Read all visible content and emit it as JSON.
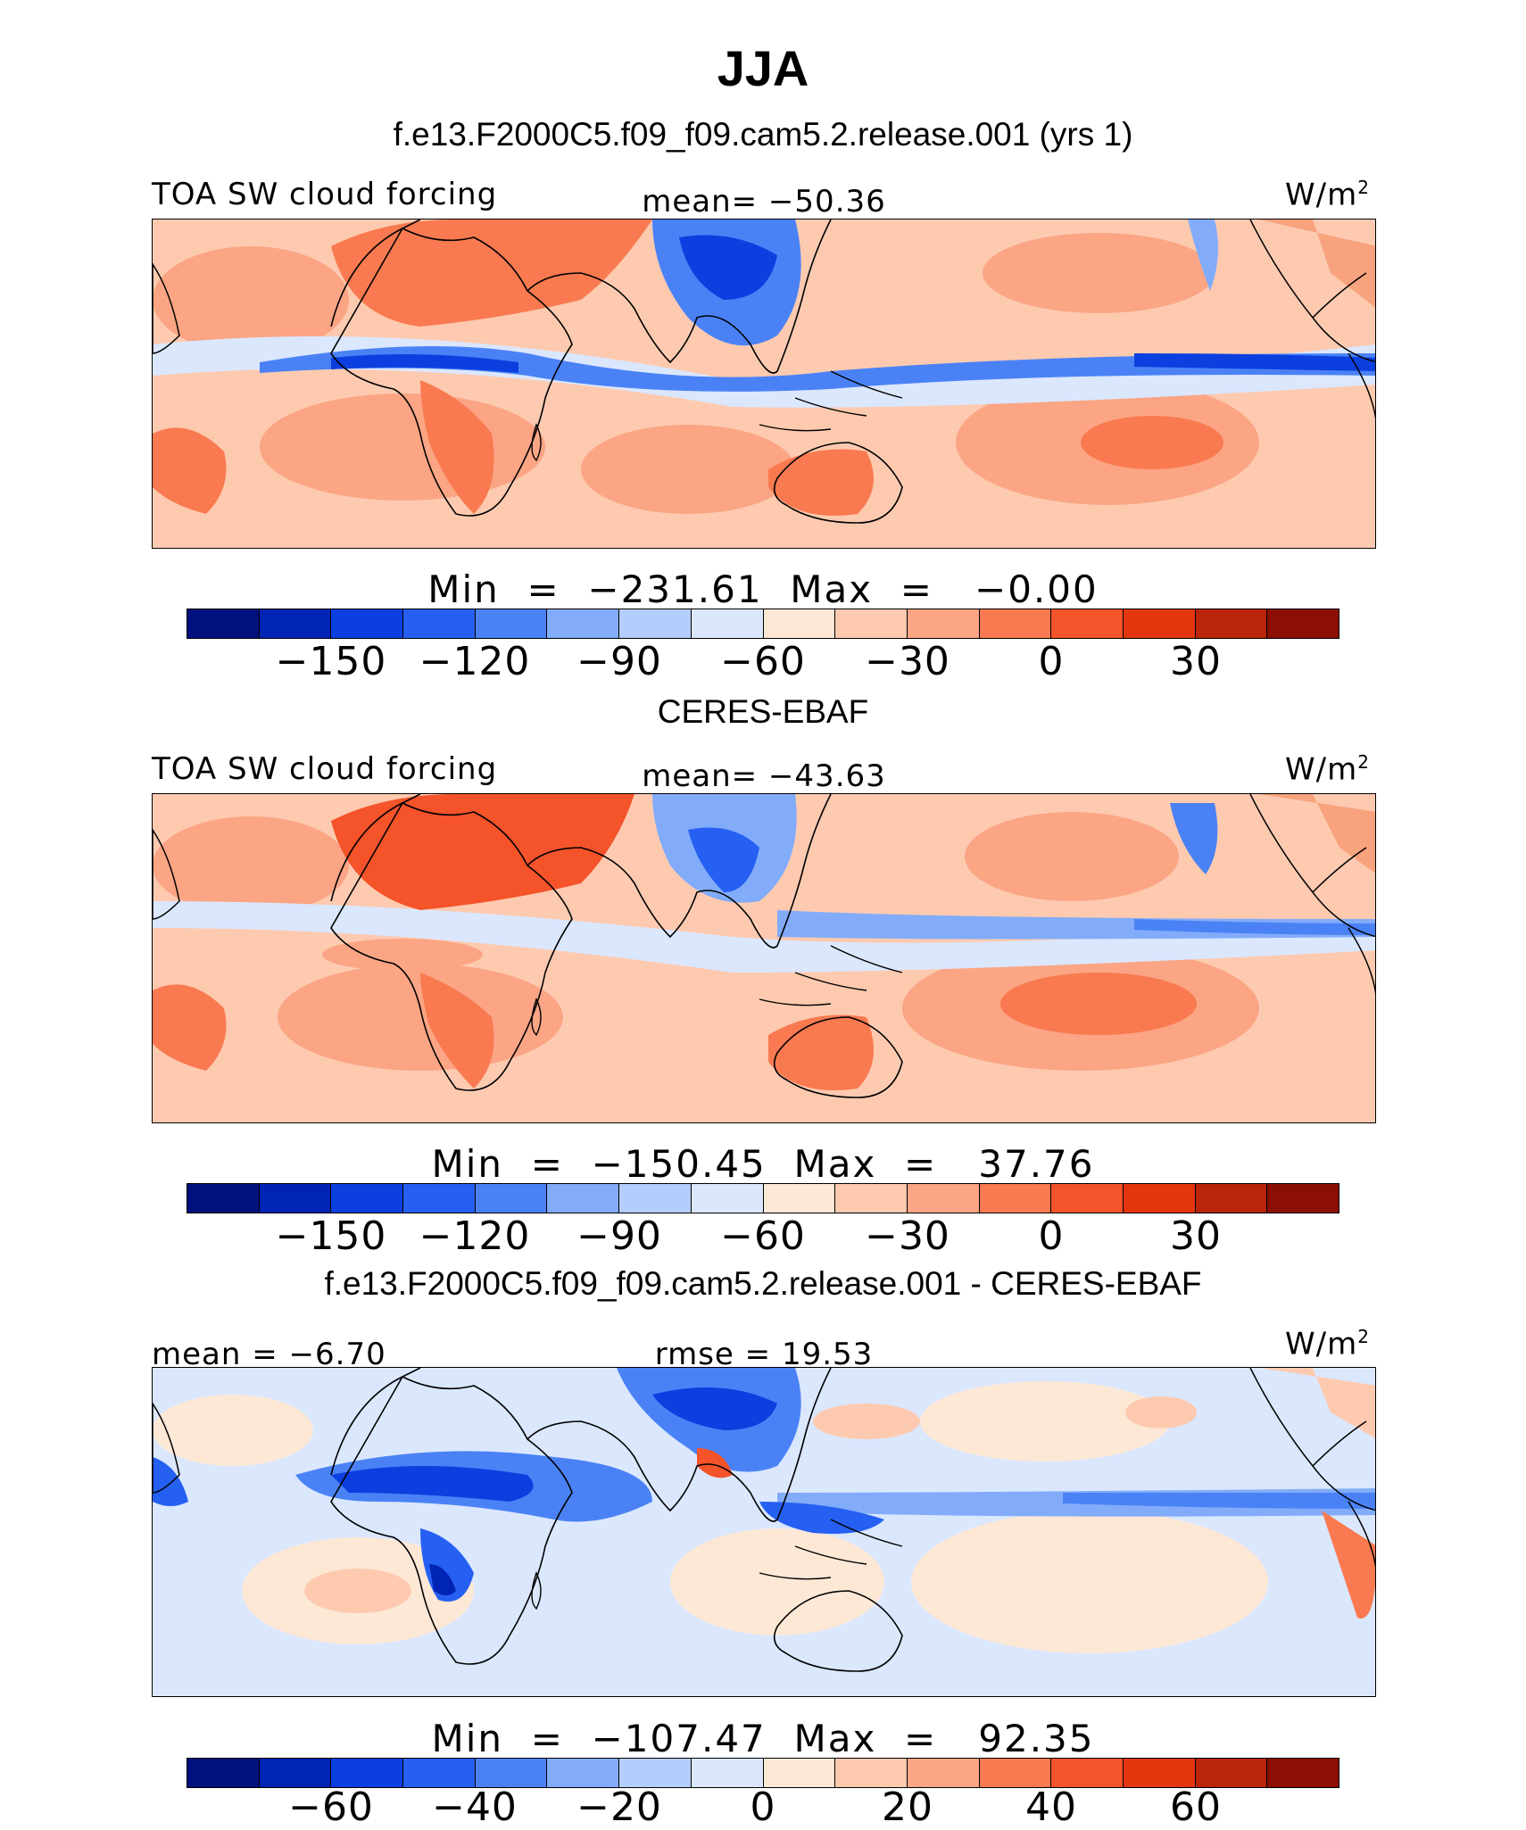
{
  "figure": {
    "title": "JJA",
    "colors": [
      "#00107c",
      "#0024b4",
      "#0c3fdf",
      "#2660f2",
      "#4a82f6",
      "#82acfa",
      "#b4cdfc",
      "#dbe7fd",
      "#fde8d6",
      "#fdcab0",
      "#fba585",
      "#f97a50",
      "#f5532a",
      "#e3360f",
      "#b9240a",
      "#8b0f02"
    ],
    "land_colors": {
      "warm": "#f2794e",
      "warm2": "#f8a27e",
      "cool": "#2f62e8",
      "cool2": "#88aef8"
    }
  },
  "panels": [
    {
      "case_title": "f.e13.F2000C5.f09_f09.cam5.2.release.001 (yrs 1)",
      "left_label": "TOA SW cloud forcing",
      "center_label": "mean= −50.36",
      "units": "W/m",
      "units_sup": "2",
      "min_max": "Min  =  −231.61  Max  =   −0.00",
      "ticks": [
        "−150",
        "−120",
        "−90",
        "−60",
        "−30",
        "0",
        "30"
      ]
    },
    {
      "case_title": "CERES-EBAF",
      "left_label": "TOA SW cloud forcing",
      "center_label": "mean= −43.63",
      "units": "W/m",
      "units_sup": "2",
      "min_max": "Min  =  −150.45  Max  =   37.76",
      "ticks": [
        "−150",
        "−120",
        "−90",
        "−60",
        "−30",
        "0",
        "30"
      ]
    },
    {
      "case_title": "f.e13.F2000C5.f09_f09.cam5.2.release.001 - CERES-EBAF",
      "left_label": "mean  =   −6.70",
      "center_label": "rmse  =   19.53",
      "units": "W/m",
      "units_sup": "2",
      "min_max": "Min  =  −107.47  Max  =   92.35",
      "ticks": [
        "−60",
        "−40",
        "−20",
        "0",
        "20",
        "40",
        "60"
      ]
    }
  ]
}
